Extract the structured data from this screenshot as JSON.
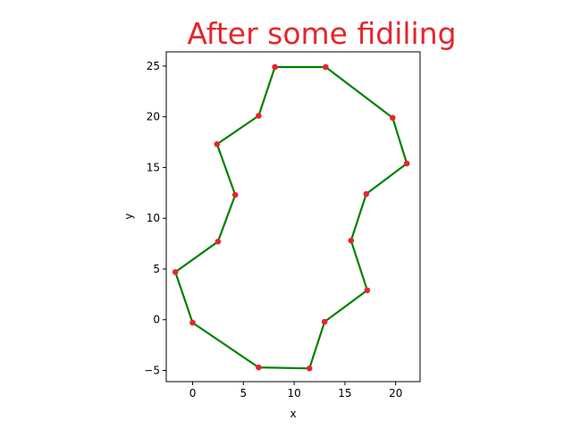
{
  "chart_data": {
    "type": "line",
    "title": "After some fidiling",
    "xlabel": "x",
    "ylabel": "y",
    "xlim": [
      -2.6,
      22.4
    ],
    "ylim": [
      -6.1,
      26.4
    ],
    "x_ticks": [
      0,
      5,
      10,
      15,
      20
    ],
    "y_ticks": [
      -5,
      0,
      5,
      10,
      15,
      20,
      25
    ],
    "grid": false,
    "legend": "none",
    "colors": {
      "line": "#008000",
      "marker": "#e4262c",
      "title": "#e4262c"
    },
    "series": [
      {
        "closed": true,
        "x": [
          6.5,
          11.5,
          13.0,
          17.2,
          15.6,
          17.1,
          21.1,
          19.7,
          13.1,
          8.1,
          6.5,
          2.4,
          4.2,
          2.5,
          -1.7,
          0.0,
          6.5
        ],
        "y": [
          -4.7,
          -4.8,
          -0.2,
          2.9,
          7.8,
          12.4,
          15.4,
          19.9,
          24.9,
          24.9,
          20.1,
          17.3,
          12.3,
          7.7,
          4.7,
          -0.3,
          -4.7
        ]
      }
    ]
  }
}
